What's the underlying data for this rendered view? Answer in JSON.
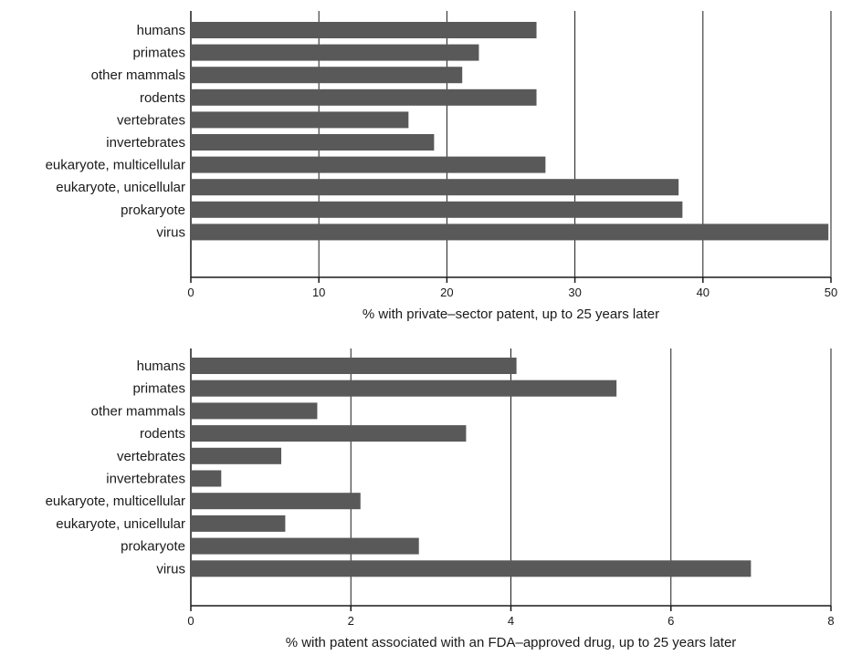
{
  "chart_data": [
    {
      "type": "bar",
      "orientation": "horizontal",
      "categories": [
        "humans",
        "primates",
        "other mammals",
        "rodents",
        "vertebrates",
        "invertebrates",
        "eukaryote, multicellular",
        "eukaryote, unicellular",
        "prokaryote",
        "virus"
      ],
      "values": [
        27.0,
        22.5,
        21.2,
        27.0,
        17.0,
        19.0,
        27.7,
        38.1,
        38.4,
        49.8
      ],
      "xlabel": "% with private–sector patent, up to 25 years later",
      "ylabel": "",
      "xlim": [
        0,
        50
      ],
      "xticks": [
        0,
        10,
        20,
        30,
        40,
        50
      ],
      "grid": "vertical",
      "bar_color": "#595959"
    },
    {
      "type": "bar",
      "orientation": "horizontal",
      "categories": [
        "humans",
        "primates",
        "other mammals",
        "rodents",
        "vertebrates",
        "invertebrates",
        "eukaryote, multicellular",
        "eukaryote, unicellular",
        "prokaryote",
        "virus"
      ],
      "values": [
        4.07,
        5.32,
        1.58,
        3.44,
        1.13,
        0.38,
        2.12,
        1.18,
        2.85,
        7.0
      ],
      "xlabel": "% with patent associated with an FDA–approved drug, up to 25 years later",
      "ylabel": "",
      "xlim": [
        0,
        8
      ],
      "xticks": [
        0,
        2,
        4,
        6,
        8
      ],
      "grid": "vertical",
      "bar_color": "#595959"
    }
  ]
}
